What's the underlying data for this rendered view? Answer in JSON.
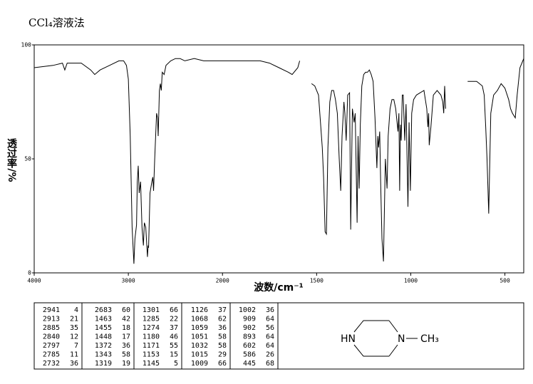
{
  "chart_data": {
    "type": "line",
    "title": "CCl₄溶液法",
    "xlabel": "波数/cm⁻¹",
    "ylabel": "透过率/%",
    "xlim": [
      4000,
      400
    ],
    "x_scale_break": 2000,
    "xticks": [
      4000,
      3000,
      2000,
      1500,
      1000,
      500
    ],
    "ylim": [
      0,
      100
    ],
    "yticks": [
      0,
      50,
      100
    ],
    "color": "#000000",
    "x": [
      4000,
      3800,
      3700,
      3675,
      3650,
      3500,
      3400,
      3357,
      3300,
      3200,
      3100,
      3050,
      3020,
      3000,
      2980,
      2960,
      2941,
      2930,
      2913,
      2905,
      2895,
      2885,
      2870,
      2855,
      2840,
      2830,
      2815,
      2797,
      2790,
      2785,
      2770,
      2750,
      2740,
      2732,
      2720,
      2700,
      2690,
      2683,
      2670,
      2660,
      2650,
      2640,
      2620,
      2600,
      2550,
      2500,
      2450,
      2400,
      2300,
      2200,
      2100,
      2000,
      1900,
      1800,
      1750,
      1700,
      1650,
      1630,
      1600,
      1590,
      null,
      1527,
      1510,
      1490,
      1470,
      1463,
      1455,
      1448,
      1440,
      1430,
      1420,
      1410,
      1400,
      1390,
      1380,
      1372,
      1365,
      1355,
      1350,
      1343,
      1335,
      1325,
      1319,
      1310,
      1301,
      1295,
      1285,
      1280,
      1274,
      1268,
      1260,
      1250,
      1240,
      1230,
      1220,
      1210,
      1200,
      1190,
      1180,
      1175,
      1171,
      1165,
      1160,
      1153,
      1145,
      1135,
      1126,
      1120,
      1110,
      1100,
      1090,
      1080,
      1068,
      1063,
      1059,
      1055,
      1051,
      1045,
      1040,
      1032,
      1025,
      1015,
      1009,
      1002,
      995,
      985,
      970,
      950,
      930,
      915,
      909,
      905,
      902,
      893,
      880,
      860,
      840,
      830,
      825,
      820,
      815,
      null,
      698,
      680,
      650,
      620,
      610,
      602,
      595,
      586,
      575,
      560,
      540,
      520,
      500,
      480,
      470,
      460,
      445,
      435,
      420,
      400
    ],
    "values": [
      90,
      91,
      92,
      89,
      92,
      92,
      89,
      87,
      89,
      91,
      93,
      93,
      91,
      85,
      60,
      20,
      4,
      15,
      21,
      40,
      47,
      35,
      40,
      20,
      12,
      22,
      20,
      7,
      12,
      11,
      35,
      40,
      42,
      36,
      50,
      70,
      68,
      60,
      80,
      83,
      80,
      88,
      87,
      91,
      93,
      94,
      94,
      93,
      94,
      93,
      93,
      93,
      93,
      93,
      92,
      90,
      88,
      87,
      90,
      93,
      null,
      83,
      82,
      78,
      55,
      42,
      18,
      17,
      55,
      75,
      80,
      80,
      76,
      70,
      50,
      36,
      60,
      75,
      70,
      58,
      78,
      79,
      19,
      72,
      66,
      70,
      22,
      60,
      37,
      65,
      82,
      87,
      88,
      88,
      89,
      87,
      84,
      68,
      46,
      60,
      55,
      62,
      40,
      15,
      5,
      50,
      37,
      60,
      72,
      76,
      76,
      72,
      62,
      70,
      36,
      65,
      58,
      78,
      78,
      58,
      74,
      29,
      66,
      36,
      70,
      76,
      78,
      79,
      80,
      72,
      64,
      70,
      56,
      64,
      78,
      80,
      78,
      75,
      70,
      82,
      72,
      null,
      84,
      84,
      84,
      82,
      78,
      64,
      50,
      26,
      70,
      78,
      80,
      83,
      81,
      76,
      72,
      70,
      68,
      78,
      90,
      94
    ]
  },
  "peak_table": [
    [
      [
        "2941",
        "4"
      ],
      [
        "2913",
        "21"
      ],
      [
        "2885",
        "35"
      ],
      [
        "2840",
        "12"
      ],
      [
        "2797",
        "7"
      ],
      [
        "2785",
        "11"
      ],
      [
        "2732",
        "36"
      ]
    ],
    [
      [
        "2683",
        "60"
      ],
      [
        "1463",
        "42"
      ],
      [
        "1455",
        "18"
      ],
      [
        "1448",
        "17"
      ],
      [
        "1372",
        "36"
      ],
      [
        "1343",
        "58"
      ],
      [
        "1319",
        "19"
      ]
    ],
    [
      [
        "1301",
        "66"
      ],
      [
        "1285",
        "22"
      ],
      [
        "1274",
        "37"
      ],
      [
        "1180",
        "46"
      ],
      [
        "1171",
        "55"
      ],
      [
        "1153",
        "15"
      ],
      [
        "1145",
        "5"
      ]
    ],
    [
      [
        "1126",
        "37"
      ],
      [
        "1068",
        "62"
      ],
      [
        "1059",
        "36"
      ],
      [
        "1051",
        "58"
      ],
      [
        "1032",
        "58"
      ],
      [
        "1015",
        "29"
      ],
      [
        "1009",
        "66"
      ]
    ],
    [
      [
        "1002",
        "36"
      ],
      [
        "909",
        "64"
      ],
      [
        "902",
        "56"
      ],
      [
        "893",
        "64"
      ],
      [
        "602",
        "64"
      ],
      [
        "586",
        "26"
      ],
      [
        "445",
        "68"
      ]
    ]
  ],
  "structure": {
    "left_atom": "HN",
    "right_atom": "N",
    "substituent": "CH₃"
  }
}
